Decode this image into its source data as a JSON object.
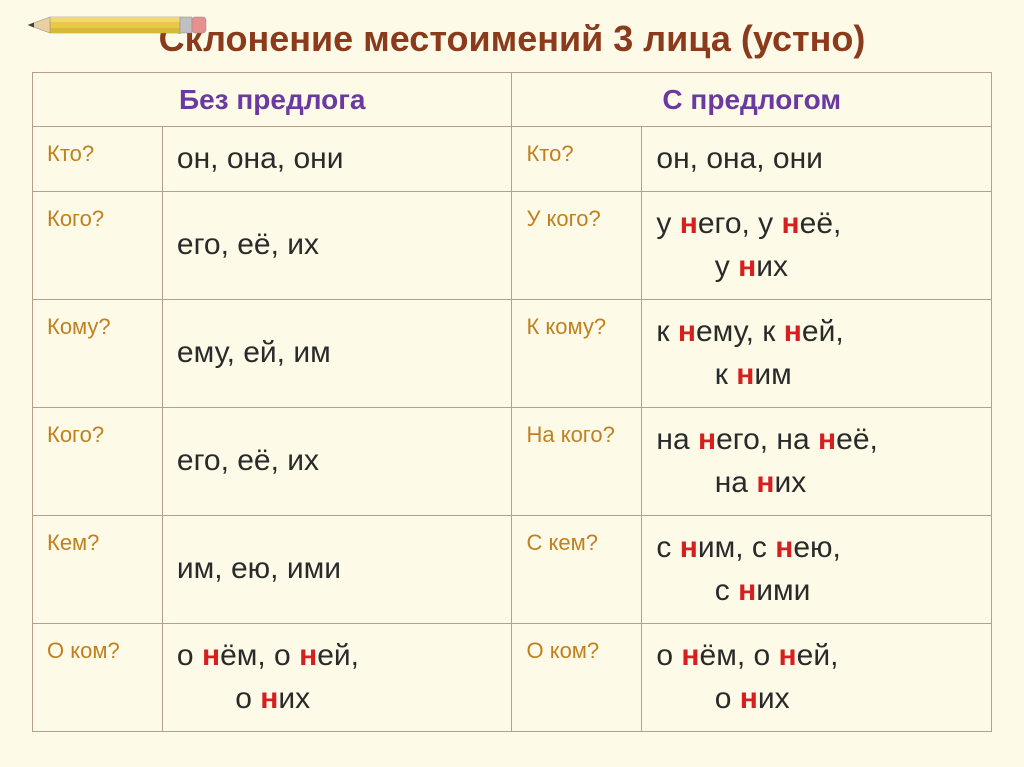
{
  "title": "Склонение местоимений 3 лица (устно)",
  "headers": {
    "left": "Без предлога",
    "right": "С предлогом"
  },
  "rows": [
    {
      "ql": "Кто?",
      "al": "он, она, они",
      "qr": "Кто?",
      "ar": "он, она, они"
    },
    {
      "ql": "Кого?",
      "al": "его, её, их",
      "qr": "У кого?",
      "ar_html": "у <span class='hl'>н</span>его, у <span class='hl'>н</span>её,<br>&nbsp;&nbsp;&nbsp;&nbsp;&nbsp;&nbsp;&nbsp;у <span class='hl'>н</span>их"
    },
    {
      "ql": "Кому?",
      "al": "ему, ей, им",
      "qr": "К кому?",
      "ar_html": "к <span class='hl'>н</span>ему, к <span class='hl'>н</span>ей,<br>&nbsp;&nbsp;&nbsp;&nbsp;&nbsp;&nbsp;&nbsp;к <span class='hl'>н</span>им"
    },
    {
      "ql": "Кого?",
      "al": "его, её, их",
      "qr": "На кого?",
      "ar_html": "на <span class='hl'>н</span>его, на <span class='hl'>н</span>её,<br>&nbsp;&nbsp;&nbsp;&nbsp;&nbsp;&nbsp;&nbsp;на <span class='hl'>н</span>их"
    },
    {
      "ql": "Кем?",
      "al": "им, ею, ими",
      "qr": "С кем?",
      "ar_html": "с <span class='hl'>н</span>им, с <span class='hl'>н</span>ею,<br>&nbsp;&nbsp;&nbsp;&nbsp;&nbsp;&nbsp;&nbsp;с <span class='hl'>н</span>ими"
    },
    {
      "ql": "О ком?",
      "al_html": "о <span class='hl'>н</span>ём, о <span class='hl'>н</span>ей,<br>&nbsp;&nbsp;&nbsp;&nbsp;&nbsp;&nbsp;&nbsp;о <span class='hl'>н</span>их",
      "qr": "О ком?",
      "ar_html": "о <span class='hl'>н</span>ём, о <span class='hl'>н</span>ей,<br>&nbsp;&nbsp;&nbsp;&nbsp;&nbsp;&nbsp;&nbsp;о <span class='hl'>н</span>их"
    }
  ],
  "colors": {
    "background": "#fdfbe8",
    "title": "#8b3a1c",
    "header": "#6b3aa0",
    "question": "#c08020",
    "answer": "#2a2a2a",
    "highlight": "#d62020",
    "border": "#b8a088"
  },
  "fonts": {
    "title_size": 36,
    "header_size": 28,
    "question_size": 22,
    "answer_size": 30
  }
}
